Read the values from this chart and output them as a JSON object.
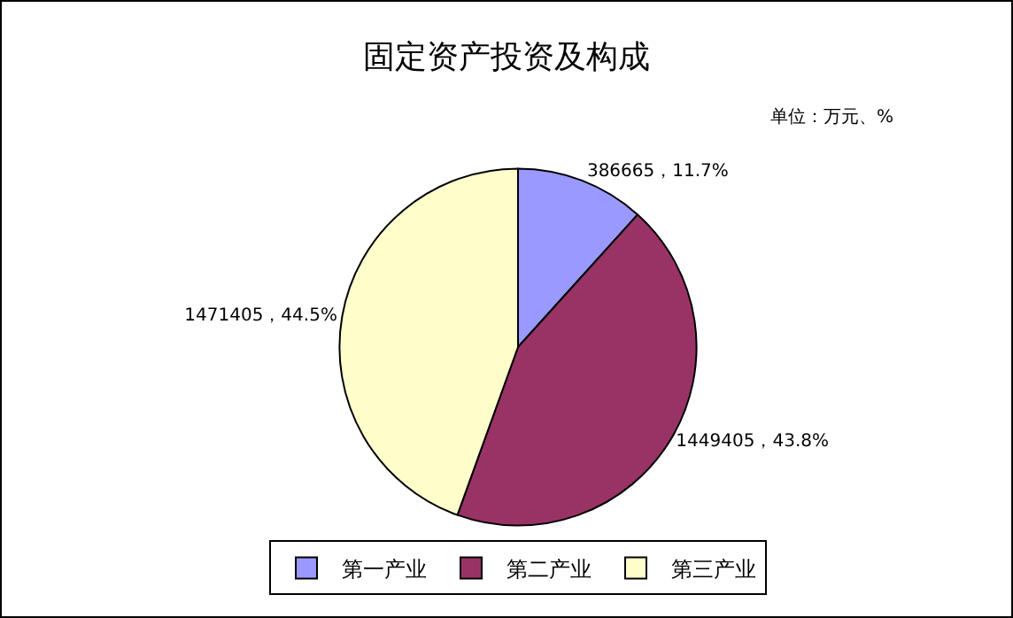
{
  "chart_data": {
    "type": "pie",
    "title": "固定资产投资及构成",
    "annotations": [
      "单位：万元、%"
    ],
    "categories": [
      "第一产业",
      "第二产业",
      "第三产业"
    ],
    "values": [
      386665,
      1449405,
      1471405
    ],
    "colors": [
      "#9999ff",
      "#993366",
      "#ffffcc"
    ],
    "value_labels": [
      "386665，11.7%",
      "1449405，43.8%",
      "1471405，44.5%"
    ],
    "legend": "bottom"
  }
}
